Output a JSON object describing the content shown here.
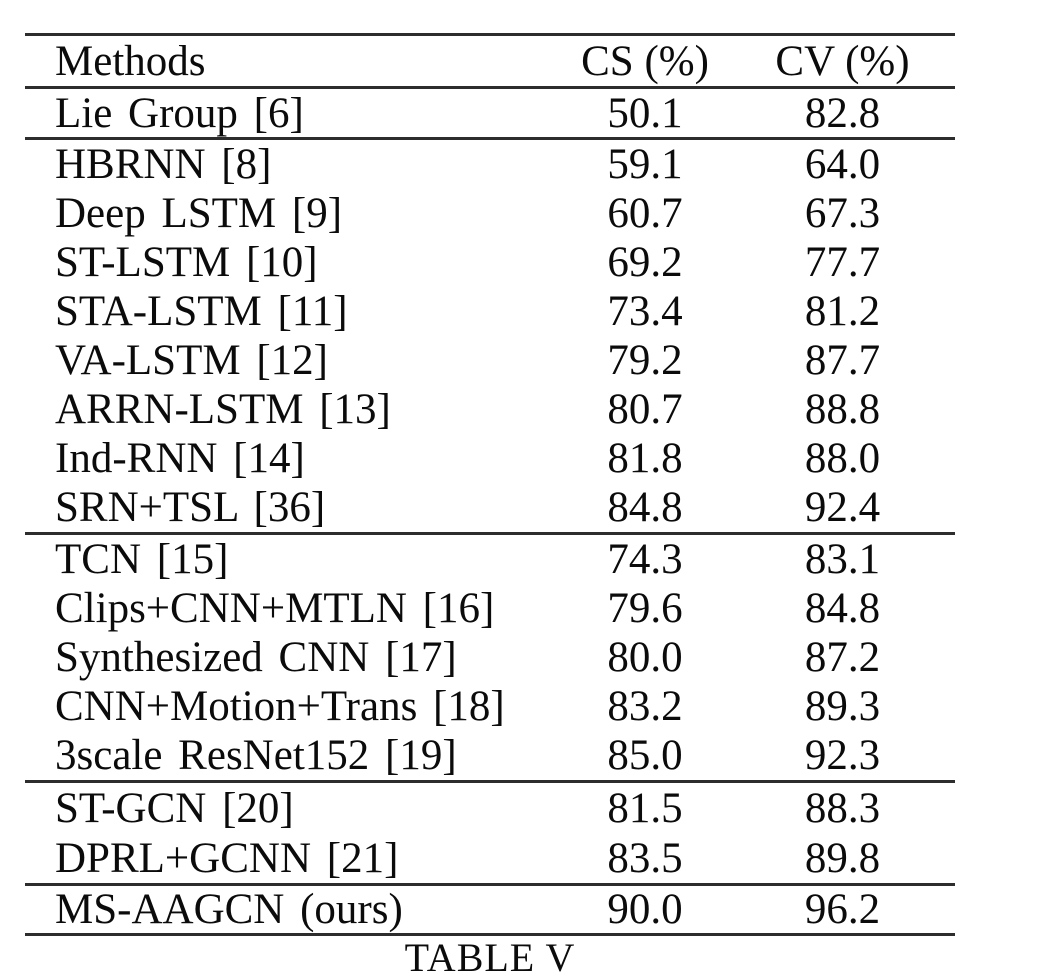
{
  "table": {
    "headers": {
      "method": "Methods",
      "cs": "CS (%)",
      "cv": "CV (%)"
    },
    "sections": [
      {
        "rows": [
          {
            "method": "Lie Group [6]",
            "cs": "50.1",
            "cv": "82.8"
          }
        ]
      },
      {
        "rows": [
          {
            "method": "HBRNN [8]",
            "cs": "59.1",
            "cv": "64.0"
          },
          {
            "method": "Deep LSTM [9]",
            "cs": "60.7",
            "cv": "67.3"
          },
          {
            "method": "ST-LSTM [10]",
            "cs": "69.2",
            "cv": "77.7"
          },
          {
            "method": "STA-LSTM [11]",
            "cs": "73.4",
            "cv": "81.2"
          },
          {
            "method": "VA-LSTM [12]",
            "cs": "79.2",
            "cv": "87.7"
          },
          {
            "method": "ARRN-LSTM [13]",
            "cs": "80.7",
            "cv": "88.8"
          },
          {
            "method": "Ind-RNN [14]",
            "cs": "81.8",
            "cv": "88.0"
          },
          {
            "method": "SRN+TSL [36]",
            "cs": "84.8",
            "cv": "92.4"
          }
        ]
      },
      {
        "rows": [
          {
            "method": "TCN [15]",
            "cs": "74.3",
            "cv": "83.1"
          },
          {
            "method": "Clips+CNN+MTLN [16]",
            "cs": "79.6",
            "cv": "84.8"
          },
          {
            "method": "Synthesized CNN [17]",
            "cs": "80.0",
            "cv": "87.2"
          },
          {
            "method": "CNN+Motion+Trans [18]",
            "cs": "83.2",
            "cv": "89.3"
          },
          {
            "method": "3scale ResNet152 [19]",
            "cs": "85.0",
            "cv": "92.3"
          }
        ]
      },
      {
        "rows": [
          {
            "method": "ST-GCN [20]",
            "cs": "81.5",
            "cv": "88.3"
          },
          {
            "method": "DPRL+GCNN [21]",
            "cs": "83.5",
            "cv": "89.8"
          }
        ]
      },
      {
        "rows": [
          {
            "method": "MS-AAGCN (ours)",
            "cs": "90.0",
            "cv": "96.2"
          }
        ]
      }
    ],
    "caption": "TABLE V"
  }
}
